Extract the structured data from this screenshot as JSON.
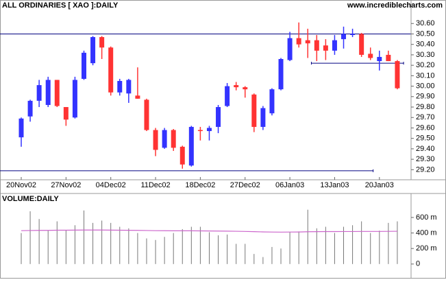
{
  "chart_data": [
    {
      "type": "candlestick",
      "title": "ALL ORDINARIES [ XAO ]:DAILY",
      "source": "www.incrediblecharts.com",
      "categories": [
        "20Nov02",
        null,
        null,
        null,
        null,
        "27Nov02",
        null,
        null,
        null,
        null,
        "04Dec02",
        null,
        null,
        null,
        null,
        "11Dec02",
        null,
        null,
        null,
        null,
        "18Dec02",
        null,
        null,
        null,
        null,
        "27Dec02",
        null,
        null,
        null,
        null,
        "06Jan03",
        null,
        null,
        null,
        null,
        "13Jan03",
        null,
        null,
        null,
        null,
        "20Jan03",
        null,
        null
      ],
      "open": [
        29.51,
        29.71,
        29.86,
        29.82,
        30.06,
        29.8,
        29.7,
        30.07,
        30.22,
        30.47,
        30.37,
        29.94,
        29.93,
        29.91,
        29.87,
        29.58,
        29.41,
        29.58,
        29.42,
        29.24,
        29.58,
        29.57,
        29.61,
        29.81,
        30.01,
        29.99,
        29.92,
        29.61,
        29.74,
        29.97,
        30.25,
        30.46,
        30.44,
        30.44,
        30.39,
        30.34,
        30.45,
        30.49,
        30.5,
        30.31,
        30.24,
        30.3,
        30.24
      ],
      "high": [
        29.7,
        29.87,
        30.06,
        30.09,
        30.06,
        29.8,
        30.09,
        30.34,
        30.48,
        30.48,
        30.38,
        30.07,
        30.07,
        30.18,
        29.88,
        29.6,
        29.6,
        29.59,
        29.43,
        29.62,
        29.61,
        29.62,
        29.82,
        30.03,
        30.04,
        30.0,
        29.93,
        29.81,
        29.98,
        30.27,
        30.52,
        30.61,
        30.55,
        30.49,
        30.45,
        30.49,
        30.57,
        30.55,
        30.51,
        30.37,
        30.34,
        30.34,
        30.25
      ],
      "low": [
        29.42,
        29.66,
        29.8,
        29.8,
        29.8,
        29.62,
        29.69,
        30.06,
        30.2,
        30.26,
        29.91,
        29.91,
        29.84,
        29.88,
        29.57,
        29.33,
        29.4,
        29.38,
        29.21,
        29.23,
        29.48,
        29.48,
        29.55,
        29.8,
        29.96,
        29.89,
        29.56,
        29.58,
        29.72,
        29.96,
        30.24,
        30.37,
        30.27,
        30.24,
        30.25,
        30.3,
        30.36,
        30.47,
        30.28,
        30.25,
        30.15,
        30.24,
        29.97
      ],
      "close": [
        29.69,
        29.86,
        30.01,
        30.06,
        29.81,
        29.68,
        30.06,
        30.32,
        30.47,
        30.37,
        29.94,
        30.05,
        30.06,
        29.88,
        29.58,
        29.39,
        29.58,
        29.41,
        29.25,
        29.61,
        29.57,
        29.6,
        29.8,
        30.0,
        29.99,
        29.97,
        29.61,
        29.79,
        29.97,
        30.26,
        30.46,
        30.4,
        30.41,
        30.34,
        30.34,
        30.44,
        30.5,
        30.5,
        30.3,
        30.27,
        30.28,
        30.24,
        29.98
      ],
      "up_color": "#3333ff",
      "down_color": "#ff3333",
      "hlines": [
        {
          "value": 30.5,
          "from": -3,
          "to": 43.5,
          "color": "#000080"
        },
        {
          "value": 29.19,
          "from": -3,
          "to": 39.3,
          "color": "#000080"
        },
        {
          "value": 30.22,
          "from": 32.4,
          "to": 42.7,
          "color": "#000080"
        }
      ],
      "ylim": [
        29.13,
        30.72
      ],
      "yticks": [
        {
          "value": 29.2,
          "label": "29.20"
        },
        {
          "value": 29.3,
          "label": "29.30"
        },
        {
          "value": 29.4,
          "label": "29.40"
        },
        {
          "value": 29.5,
          "label": "29.50"
        },
        {
          "value": 29.6,
          "label": "29.60"
        },
        {
          "value": 29.7,
          "label": "29.70"
        },
        {
          "value": 29.8,
          "label": "29.80"
        },
        {
          "value": 29.9,
          "label": "29.90"
        },
        {
          "value": 30.0,
          "label": "30.00"
        },
        {
          "value": 30.1,
          "label": "30.10"
        },
        {
          "value": 30.2,
          "label": "30.20"
        },
        {
          "value": 30.3,
          "label": "30.30"
        },
        {
          "value": 30.4,
          "label": "30.40"
        },
        {
          "value": 30.5,
          "label": "30.50"
        },
        {
          "value": 30.6,
          "label": "30.60"
        }
      ]
    },
    {
      "type": "bar",
      "title": "VOLUME:DAILY",
      "color": "#777777",
      "values": [
        400,
        680,
        580,
        430,
        550,
        440,
        500,
        690,
        530,
        560,
        530,
        480,
        460,
        400,
        330,
        310,
        350,
        400,
        450,
        480,
        480,
        410,
        370,
        380,
        260,
        260,
        130,
        90,
        220,
        200,
        410,
        420,
        700,
        460,
        480,
        400,
        480,
        500,
        550,
        400,
        430,
        530,
        550
      ],
      "ma": {
        "color": "#cc66cc",
        "values": [
          430,
          432,
          434,
          434,
          436,
          436,
          437,
          438,
          438,
          438,
          437,
          436,
          435,
          434,
          432,
          430,
          429,
          428,
          428,
          428,
          427,
          426,
          425,
          424,
          422,
          420,
          417,
          414,
          412,
          411,
          412,
          413,
          416,
          417,
          418,
          418,
          419,
          419,
          420,
          420,
          420,
          421,
          422
        ]
      },
      "ylim": [
        -90,
        900
      ],
      "yticks": [
        0,
        {
          "value": 200,
          "label": "200 m"
        },
        {
          "value": 400,
          "label": "400 m"
        },
        {
          "value": 600,
          "label": "600 m"
        }
      ]
    }
  ]
}
